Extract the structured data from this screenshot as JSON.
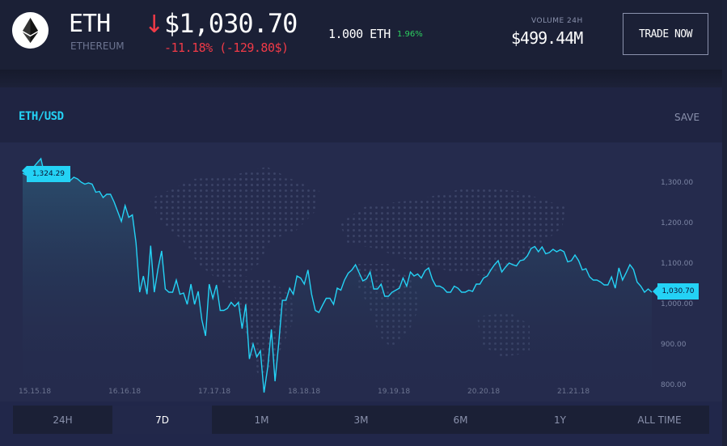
{
  "header": {
    "symbol": "ETH",
    "name": "ETHEREUM",
    "price": "$1,030.70",
    "change": "-11.18% (-129.80$)",
    "amount": "1.000 ETH",
    "amount_change": "1.96%",
    "volume_label": "VOLUME 24H",
    "volume_value": "$499.44M",
    "trade_button": "TRADE NOW"
  },
  "panel": {
    "pair": "ETH/USD",
    "save": "SAVE"
  },
  "colors": {
    "accent": "#24d2f5",
    "negative": "#f03a47",
    "positive": "#2ccf60"
  },
  "chart_data": {
    "type": "line",
    "y_ticks": [
      "1,300.00",
      "1,200.00",
      "1,100.00",
      "1,000.00",
      "900.00",
      "800.00"
    ],
    "x_ticks": [
      "15.15.18",
      "16.16.18",
      "17.17.18",
      "18.18.18",
      "19.19.18",
      "20.20.18",
      "21.21.18"
    ],
    "ylim": [
      800,
      1300
    ],
    "start_label": "1,324.29",
    "end_label": "1,030.70",
    "values": [
      1324,
      1319,
      1333,
      1339,
      1350,
      1360,
      1320,
      1313,
      1325,
      1316,
      1321,
      1308,
      1310,
      1306,
      1314,
      1310,
      1302,
      1297,
      1300,
      1297,
      1277,
      1279,
      1264,
      1272,
      1272,
      1253,
      1229,
      1205,
      1244,
      1215,
      1221,
      1152,
      1030,
      1070,
      1025,
      1145,
      1030,
      1088,
      1132,
      1038,
      1030,
      1030,
      1060,
      1025,
      1028,
      1000,
      1050,
      1000,
      1032,
      962,
      922,
      1050,
      1015,
      1048,
      985,
      985,
      990,
      1005,
      995,
      1005,
      940,
      1000,
      865,
      902,
      870,
      885,
      782,
      845,
      938,
      810,
      902,
      1010,
      1010,
      1040,
      1025,
      1070,
      1065,
      1050,
      1085,
      1025,
      985,
      980,
      998,
      1015,
      1015,
      1000,
      1040,
      1035,
      1060,
      1077,
      1085,
      1098,
      1078,
      1058,
      1063,
      1080,
      1038,
      1038,
      1050,
      1020,
      1020,
      1030,
      1035,
      1040,
      1065,
      1045,
      1080,
      1070,
      1075,
      1065,
      1083,
      1090,
      1062,
      1045,
      1045,
      1040,
      1030,
      1030,
      1045,
      1040,
      1030,
      1030,
      1035,
      1032,
      1050,
      1050,
      1065,
      1070,
      1085,
      1098,
      1108,
      1080,
      1092,
      1102,
      1098,
      1095,
      1108,
      1110,
      1120,
      1138,
      1143,
      1130,
      1142,
      1125,
      1128,
      1136,
      1130,
      1135,
      1130,
      1105,
      1108,
      1122,
      1108,
      1085,
      1088,
      1068,
      1060,
      1060,
      1055,
      1048,
      1048,
      1068,
      1040,
      1090,
      1060,
      1078,
      1098,
      1086,
      1055,
      1045,
      1030,
      1038,
      1030
    ]
  },
  "tabs": [
    {
      "label": "24H",
      "active": false
    },
    {
      "label": "7D",
      "active": true
    },
    {
      "label": "1M",
      "active": false
    },
    {
      "label": "3M",
      "active": false
    },
    {
      "label": "6M",
      "active": false
    },
    {
      "label": "1Y",
      "active": false
    },
    {
      "label": "ALL TIME",
      "active": false
    }
  ]
}
